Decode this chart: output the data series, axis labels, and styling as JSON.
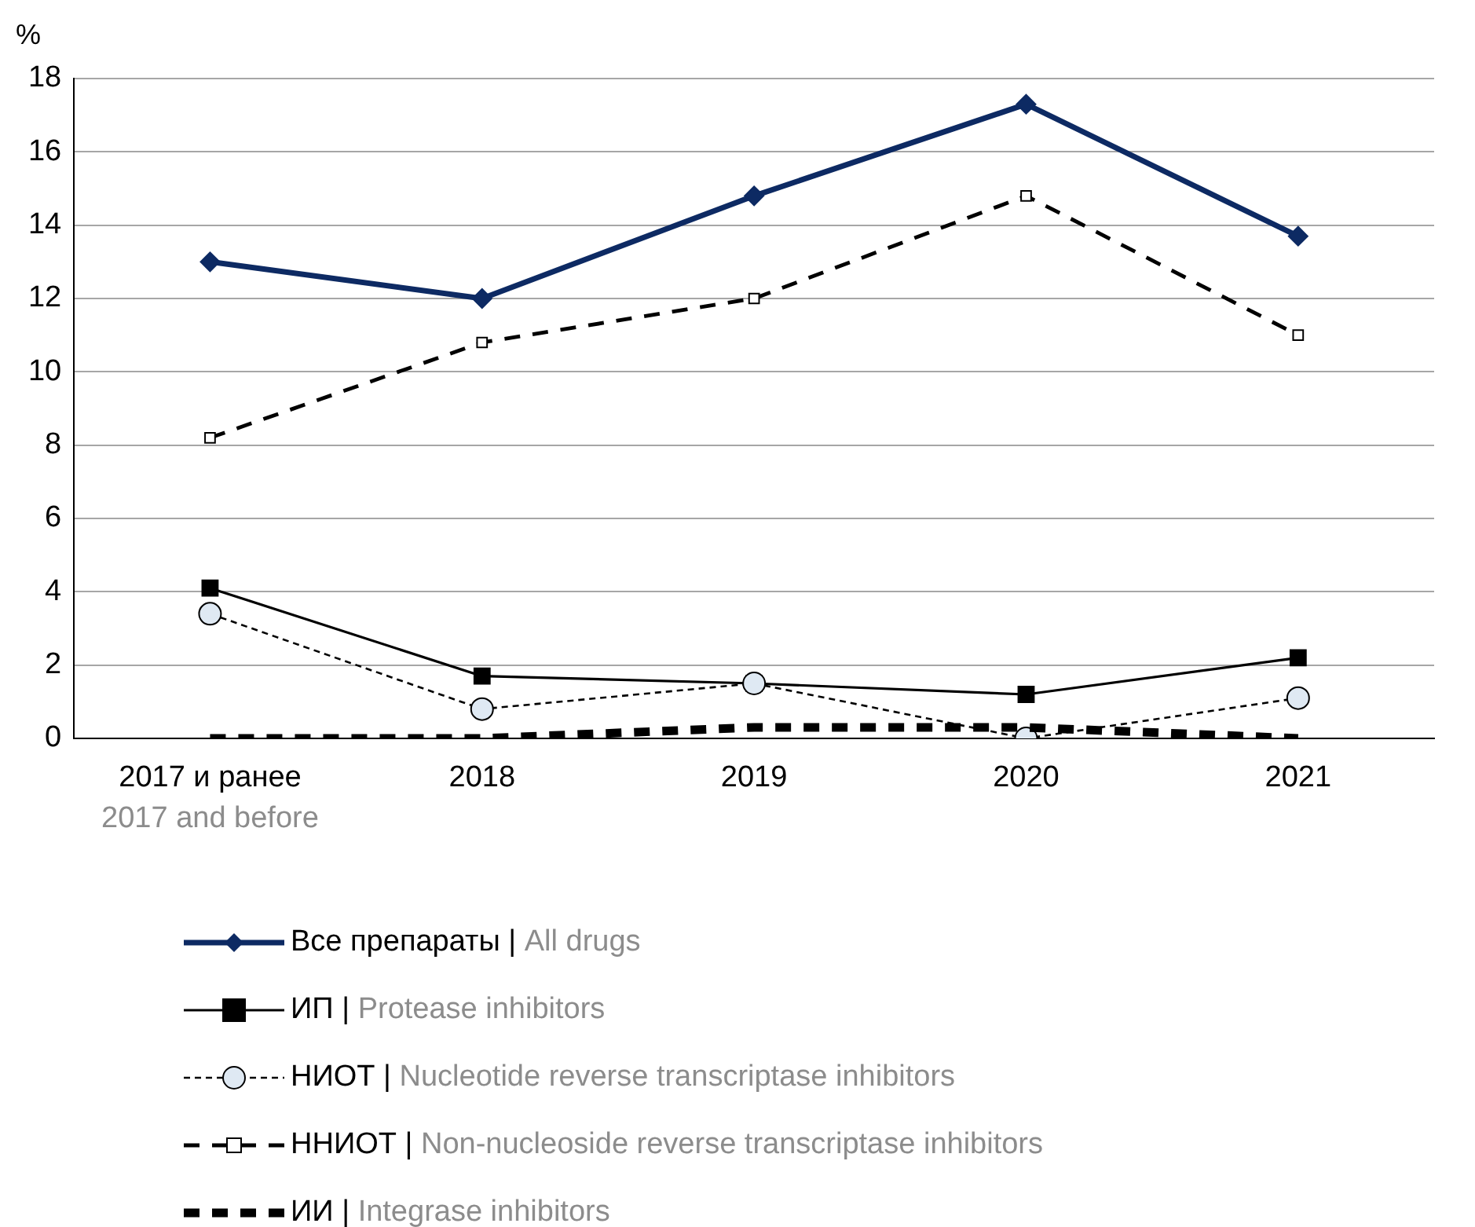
{
  "chart_data": {
    "type": "line",
    "ylabel": "%",
    "categories": [
      "2017 и ранее\n2017 and before",
      "2018",
      "2019",
      "2020",
      "2021"
    ],
    "ylim": [
      0,
      18
    ],
    "yticks": [
      0,
      2,
      4,
      6,
      8,
      10,
      12,
      14,
      16,
      18
    ],
    "grid": "y",
    "legend": "bottom",
    "series": [
      {
        "name": "Все препараты | All drugs",
        "color": "#0d2a63",
        "marker": "diamond",
        "line_style": "solid",
        "values": [
          13,
          12,
          14.8,
          17.3,
          13.7
        ]
      },
      {
        "name": "ИП | Protease inhibitors",
        "color": "#000000",
        "marker": "square",
        "line_style": "solid",
        "values": [
          4.1,
          1.7,
          1.5,
          1.2,
          2.2
        ]
      },
      {
        "name": "НИОТ | Nucleotide reverse transcriptase inhibitors",
        "color": "#000000",
        "marker": "circle",
        "line_style": "dotted",
        "values": [
          3.4,
          0.8,
          1.5,
          0,
          1.1
        ]
      },
      {
        "name": "ННИОТ | Non-nucleoside reverse transcriptase inhibitors",
        "color": "#000000",
        "marker": "square",
        "line_style": "dashed",
        "values": [
          8.2,
          10.8,
          12,
          14.8,
          11
        ]
      },
      {
        "name": "ИИ | Integrase inhibitors",
        "color": "#000000",
        "marker": "none",
        "line_style": "dashed",
        "values": [
          0,
          0,
          0.3,
          0.3,
          0
        ]
      }
    ]
  }
}
